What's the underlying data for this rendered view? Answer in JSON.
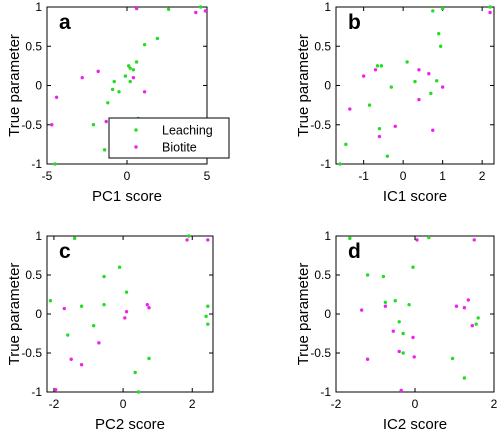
{
  "chart_data": [
    {
      "type": "scatter",
      "panel": "a",
      "xlabel": "PC1 score",
      "ylabel": "True parameter",
      "xlim": [
        -5,
        5
      ],
      "ylim": [
        -1,
        1
      ],
      "xticks": [
        -5,
        0,
        5
      ],
      "yticks": [
        -1,
        -0.5,
        0,
        0.5,
        1
      ],
      "legend": {
        "placement": "lower-right",
        "entries": [
          "Leaching",
          "Biotite"
        ]
      },
      "series": [
        {
          "name": "Leaching",
          "color": "#22dd22",
          "points": [
            [
              -4.5,
              -1.0
            ],
            [
              -2.1,
              -0.5
            ],
            [
              -1.4,
              -0.82
            ],
            [
              -1.2,
              -0.22
            ],
            [
              -0.9,
              -0.05
            ],
            [
              -0.8,
              0.05
            ],
            [
              -0.5,
              -0.08
            ],
            [
              -0.1,
              0.12
            ],
            [
              0.1,
              0.25
            ],
            [
              0.2,
              0.05
            ],
            [
              0.2,
              0.22
            ],
            [
              0.4,
              0.2
            ],
            [
              0.6,
              0.3
            ],
            [
              0.7,
              -0.42
            ],
            [
              1.1,
              0.52
            ],
            [
              1.9,
              0.6
            ],
            [
              2.6,
              0.97
            ],
            [
              4.6,
              1.0
            ]
          ]
        },
        {
          "name": "Biotite",
          "color": "#ee22ee",
          "points": [
            [
              -4.7,
              -0.5
            ],
            [
              -4.4,
              -0.15
            ],
            [
              -2.8,
              0.1
            ],
            [
              -1.8,
              0.18
            ],
            [
              -1.3,
              -0.46
            ],
            [
              -0.9,
              -0.74
            ],
            [
              0.4,
              0.1
            ],
            [
              0.6,
              0.98
            ],
            [
              1.1,
              -0.08
            ],
            [
              4.3,
              0.93
            ],
            [
              4.9,
              0.95
            ]
          ]
        }
      ]
    },
    {
      "type": "scatter",
      "panel": "b",
      "xlabel": "IC1 score",
      "ylabel": "True parameter",
      "xlim": [
        -1.7,
        2.3
      ],
      "ylim": [
        -1,
        1
      ],
      "xticks": [
        -1,
        0,
        1,
        2
      ],
      "yticks": [
        -1,
        -0.5,
        0,
        0.5,
        1
      ],
      "series": [
        {
          "name": "Leaching",
          "color": "#22dd22",
          "points": [
            [
              -1.6,
              -1.0
            ],
            [
              -1.45,
              -0.75
            ],
            [
              -0.85,
              -0.25
            ],
            [
              -0.65,
              0.25
            ],
            [
              -0.6,
              -0.55
            ],
            [
              -0.55,
              0.25
            ],
            [
              -0.4,
              -0.9
            ],
            [
              -0.3,
              -0.02
            ],
            [
              0.1,
              0.3
            ],
            [
              0.3,
              0.05
            ],
            [
              0.7,
              -0.1
            ],
            [
              0.75,
              0.95
            ],
            [
              0.85,
              0.06
            ],
            [
              0.9,
              0.66
            ],
            [
              0.95,
              0.5
            ],
            [
              1.0,
              0.98
            ],
            [
              2.2,
              1.0
            ]
          ]
        },
        {
          "name": "Biotite",
          "color": "#ee22ee",
          "points": [
            [
              -1.35,
              -0.3
            ],
            [
              -1.0,
              0.12
            ],
            [
              -0.7,
              0.2
            ],
            [
              -0.6,
              -0.65
            ],
            [
              -0.2,
              -0.52
            ],
            [
              0.4,
              0.2
            ],
            [
              0.4,
              -0.18
            ],
            [
              0.65,
              0.15
            ],
            [
              0.75,
              -0.57
            ],
            [
              1.0,
              -0.02
            ],
            [
              2.2,
              0.93
            ]
          ]
        }
      ]
    },
    {
      "type": "scatter",
      "panel": "c",
      "xlabel": "PC2 score",
      "ylabel": "True parameter",
      "xlim": [
        -2.2,
        2.6
      ],
      "ylim": [
        -1,
        1
      ],
      "xticks": [
        -2,
        0,
        2
      ],
      "yticks": [
        -1,
        -0.5,
        0,
        0.5,
        1
      ],
      "series": [
        {
          "name": "Leaching",
          "color": "#22dd22",
          "points": [
            [
              -2.1,
              0.17
            ],
            [
              -1.6,
              -0.27
            ],
            [
              -1.4,
              0.97
            ],
            [
              -1.2,
              0.1
            ],
            [
              -0.85,
              -0.15
            ],
            [
              -0.55,
              0.12
            ],
            [
              -0.55,
              0.48
            ],
            [
              -0.1,
              0.6
            ],
            [
              0.1,
              0.28
            ],
            [
              0.35,
              -0.75
            ],
            [
              0.45,
              -1.0
            ],
            [
              0.75,
              -0.57
            ],
            [
              1.9,
              1.0
            ],
            [
              2.4,
              -0.03
            ],
            [
              2.45,
              0.1
            ],
            [
              2.45,
              -0.13
            ]
          ]
        },
        {
          "name": "Biotite",
          "color": "#ee22ee",
          "points": [
            [
              -1.95,
              -0.97
            ],
            [
              -1.7,
              0.07
            ],
            [
              -1.5,
              -0.58
            ],
            [
              -1.2,
              -0.65
            ],
            [
              -0.7,
              -0.37
            ],
            [
              0.05,
              -0.05
            ],
            [
              0.1,
              0.03
            ],
            [
              0.7,
              0.12
            ],
            [
              0.75,
              0.08
            ],
            [
              1.85,
              0.95
            ],
            [
              2.45,
              0.95
            ]
          ]
        }
      ]
    },
    {
      "type": "scatter",
      "panel": "d",
      "xlabel": "IC2 score",
      "ylabel": "True parameter",
      "xlim": [
        -2,
        2
      ],
      "ylim": [
        -1,
        1
      ],
      "xticks": [
        -2,
        0,
        2
      ],
      "yticks": [
        -1,
        -0.5,
        0,
        0.5,
        1
      ],
      "series": [
        {
          "name": "Leaching",
          "color": "#22dd22",
          "points": [
            [
              -1.65,
              0.97
            ],
            [
              -1.2,
              0.5
            ],
            [
              -0.8,
              0.48
            ],
            [
              -0.75,
              0.15
            ],
            [
              -0.5,
              0.17
            ],
            [
              -0.4,
              -0.1
            ],
            [
              -0.3,
              -0.25
            ],
            [
              -0.3,
              -0.5
            ],
            [
              -0.15,
              0.12
            ],
            [
              -0.05,
              0.6
            ],
            [
              0.35,
              0.98
            ],
            [
              0.95,
              -0.57
            ],
            [
              1.25,
              -0.82
            ],
            [
              1.55,
              -0.13
            ],
            [
              1.6,
              -0.05
            ]
          ]
        },
        {
          "name": "Biotite",
          "color": "#ee22ee",
          "points": [
            [
              -1.35,
              0.05
            ],
            [
              -1.2,
              -0.58
            ],
            [
              -0.75,
              0.1
            ],
            [
              -0.55,
              -0.22
            ],
            [
              -0.4,
              -0.48
            ],
            [
              -0.35,
              -0.98
            ],
            [
              -0.05,
              -0.3
            ],
            [
              -0.02,
              -0.55
            ],
            [
              0.05,
              0.95
            ],
            [
              1.05,
              0.1
            ],
            [
              1.25,
              0.08
            ],
            [
              1.35,
              0.18
            ],
            [
              1.45,
              -0.15
            ],
            [
              1.5,
              0.95
            ]
          ]
        }
      ]
    }
  ]
}
